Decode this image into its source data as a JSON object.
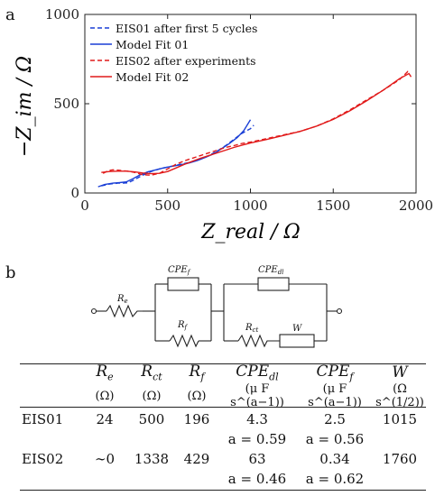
{
  "panel_a_label": "a",
  "panel_b_label": "b",
  "chart_data": {
    "type": "line",
    "ylabel": "−Z_im / Ω",
    "xlabel": "Z_real / Ω",
    "xlim": [
      0,
      2000
    ],
    "ylim": [
      0,
      1000
    ],
    "x_ticks": [
      "0",
      "500",
      "1000",
      "1500",
      "2000"
    ],
    "y_ticks": [
      "0",
      "500",
      "1000"
    ],
    "legend_position": "top-left",
    "series": [
      {
        "name": "EIS01 after first 5 cycles",
        "color": "#1a3fd6",
        "dash": true,
        "x": [
          100,
          150,
          200,
          230,
          260,
          300,
          350,
          400,
          450,
          500,
          550,
          600,
          650,
          700,
          750,
          800,
          850,
          900,
          950,
          1000,
          1020
        ],
        "y": [
          40,
          50,
          55,
          55,
          57,
          75,
          100,
          120,
          135,
          145,
          155,
          165,
          175,
          190,
          210,
          235,
          265,
          300,
          335,
          360,
          380
        ]
      },
      {
        "name": "Model Fit 01",
        "color": "#1a3fd6",
        "dash": false,
        "x": [
          80,
          120,
          170,
          210,
          250,
          290,
          330,
          380,
          430,
          480,
          530,
          580,
          630,
          680,
          730,
          780,
          820,
          870,
          920,
          960,
          1000
        ],
        "y": [
          35,
          48,
          55,
          58,
          62,
          80,
          100,
          118,
          130,
          142,
          150,
          158,
          168,
          182,
          200,
          220,
          245,
          275,
          310,
          350,
          410
        ]
      },
      {
        "name": "EIS02 after experiments",
        "color": "#e11a1a",
        "dash": true,
        "x": [
          110,
          140,
          170,
          200,
          230,
          260,
          300,
          350,
          400,
          450,
          500,
          550,
          600,
          650,
          700,
          750,
          800,
          850,
          900,
          950,
          1000,
          1100,
          1200,
          1300,
          1400,
          1500,
          1600,
          1700,
          1800,
          1900,
          1950,
          1970
        ],
        "y": [
          110,
          125,
          130,
          128,
          125,
          122,
          115,
          102,
          100,
          110,
          135,
          160,
          180,
          195,
          210,
          225,
          240,
          255,
          265,
          278,
          285,
          305,
          325,
          345,
          375,
          415,
          465,
          520,
          575,
          635,
          680,
          650
        ]
      },
      {
        "name": "Model Fit 02",
        "color": "#e11a1a",
        "dash": false,
        "x": [
          100,
          150,
          200,
          250,
          300,
          350,
          400,
          450,
          500,
          550,
          600,
          650,
          700,
          750,
          800,
          850,
          900,
          950,
          1000,
          1100,
          1200,
          1300,
          1400,
          1500,
          1600,
          1700,
          1800,
          1900,
          1960
        ],
        "y": [
          115,
          120,
          122,
          122,
          118,
          112,
          108,
          110,
          120,
          140,
          160,
          178,
          195,
          210,
          225,
          240,
          255,
          268,
          280,
          300,
          322,
          345,
          375,
          412,
          460,
          515,
          575,
          640,
          670
        ]
      }
    ]
  },
  "circuit": {
    "labels": {
      "Re": "R",
      "Re_sub": "e",
      "CPEf": "CPE",
      "CPEf_sub": "f",
      "Rf": "R",
      "Rf_sub": "f",
      "CPEdl": "CPE",
      "CPEdl_sub": "dl",
      "Rct": "R",
      "Rct_sub": "ct",
      "W": "W"
    }
  },
  "table": {
    "headers": [
      {
        "base": "R",
        "sub": "e"
      },
      {
        "base": "R",
        "sub": "ct"
      },
      {
        "base": "R",
        "sub": "f"
      },
      {
        "base": "CPE",
        "sub": "dl"
      },
      {
        "base": "CPE",
        "sub": "f"
      },
      {
        "base": "W",
        "sub": ""
      }
    ],
    "units": [
      "(Ω)",
      "(Ω)",
      "(Ω)",
      "(μ F s^(a−1))",
      "(μ F s^(a−1))",
      "(Ω s^(1/2))"
    ],
    "rows": [
      {
        "label": "EIS01",
        "values": [
          "24",
          "500",
          "196",
          "4.3",
          "2.5",
          "1015"
        ],
        "a_values": [
          "",
          "",
          "",
          "a = 0.59",
          "a = 0.56",
          ""
        ]
      },
      {
        "label": "EIS02",
        "values": [
          "∼0",
          "1338",
          "429",
          "63",
          "0.34",
          "1760"
        ],
        "a_values": [
          "",
          "",
          "",
          "a = 0.46",
          "a = 0.62",
          ""
        ]
      }
    ]
  }
}
